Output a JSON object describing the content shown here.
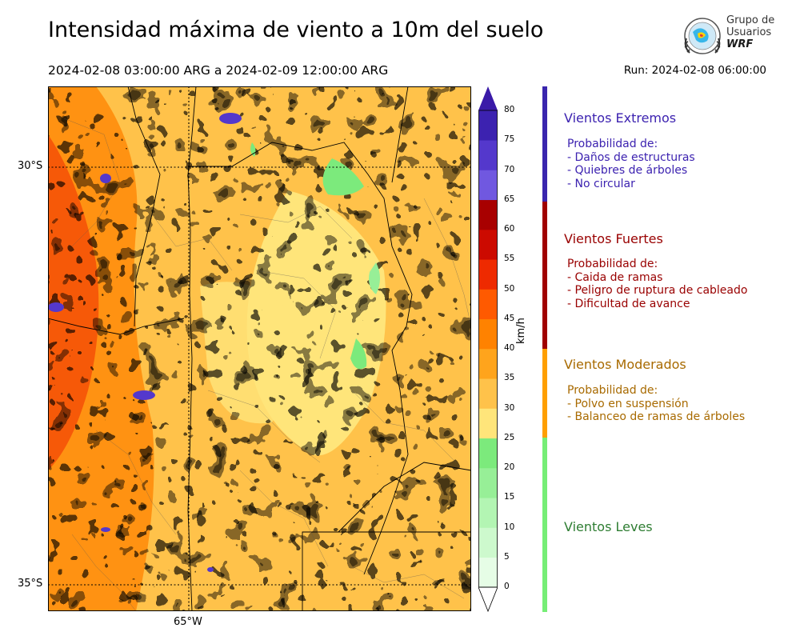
{
  "header": {
    "title": "Intensidad máxima de viento a 10m del suelo",
    "date_range": "2024-02-08 03:00:00 ARG  a  2024-02-09 12:00:00 ARG",
    "run": "Run: 2024-02-08 06:00:00"
  },
  "logo": {
    "line1": "Grupo de",
    "line2": "Usuarios",
    "line3": "WRF"
  },
  "map": {
    "lat_labels": [
      "30°S",
      "35°S"
    ],
    "lon_labels": [
      "65°W"
    ]
  },
  "colorbar": {
    "unit": "km/h",
    "ticks": [
      "0",
      "5",
      "10",
      "15",
      "20",
      "25",
      "30",
      "35",
      "40",
      "45",
      "50",
      "55",
      "60",
      "65",
      "70",
      "75",
      "80"
    ],
    "colors": [
      "#e6fde6",
      "#cdf9cd",
      "#b3f5b3",
      "#97ef97",
      "#7cea7c",
      "#ffe57a",
      "#ffc24a",
      "#ffa41c",
      "#ff8200",
      "#ff5a00",
      "#ee2a00",
      "#cc0a00",
      "#a80000",
      "#7058e0",
      "#5438cc",
      "#3c22b0"
    ],
    "over_color": "#3a1aa8"
  },
  "legend": [
    {
      "title": "Vientos Extremos",
      "color": "#3c22b0",
      "bar_color": "#3a26ae",
      "lines": [
        "Probabilidad de:",
        "- Daños de estructuras",
        "- Quiebres de árboles",
        "- No circular"
      ]
    },
    {
      "title": "Vientos Fuertes",
      "color": "#990000",
      "bar_color": "#a00000",
      "lines": [
        "Probabilidad de:",
        "- Caida de ramas",
        "- Peligro de ruptura de cableado",
        "- Dificultad de avance"
      ]
    },
    {
      "title": "Vientos Moderados",
      "color": "#a86a00",
      "bar_color": "#ff9f00",
      "lines": [
        "Probabilidad de:",
        "- Polvo en suspensión",
        "- Balanceo de ramas de árboles"
      ]
    },
    {
      "title": "Vientos Leves",
      "color": "#2e7d32",
      "bar_color": "#76ee76",
      "lines": []
    }
  ]
}
